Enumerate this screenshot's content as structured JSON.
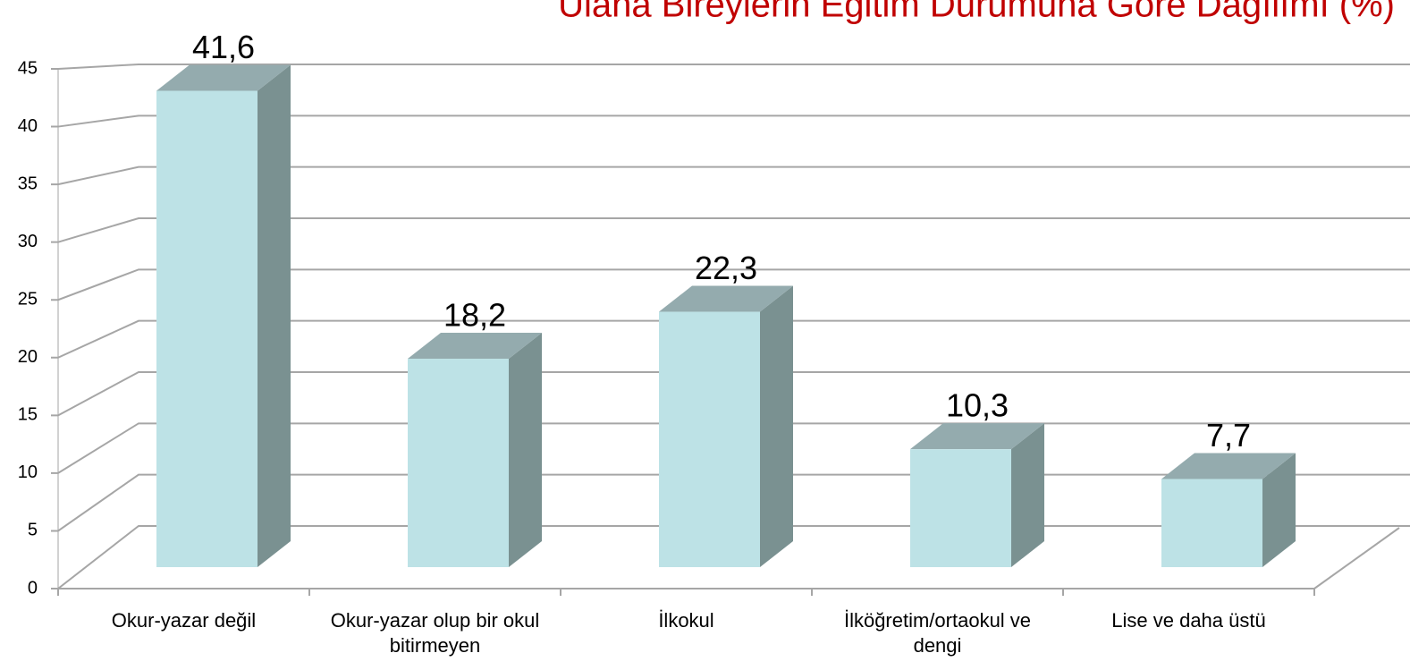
{
  "chart_data": {
    "type": "bar3d",
    "title": "Ulana Bireylerin Eğitim Durumuna Göre Dağılımı (%)",
    "categories": [
      "Okur-yazar değil",
      "Okur-yazar olup bir okul bitirmeyen",
      "İlkokul",
      "İlköğretim/ortaokul ve dengi",
      "Lise ve daha üstü"
    ],
    "values": [
      41.6,
      18.2,
      22.3,
      10.3,
      7.7
    ],
    "value_labels": [
      "41,6",
      "18,2",
      "22,3",
      "10,3",
      "7,7"
    ],
    "colors": {
      "front": "#bde2e6",
      "top": "#94abae",
      "side": "#7a9191"
    },
    "title_color": "#c00000",
    "ylim": [
      0,
      45
    ],
    "yticks": [
      0,
      5,
      10,
      15,
      20,
      25,
      30,
      35,
      40,
      45
    ],
    "grid": true
  }
}
